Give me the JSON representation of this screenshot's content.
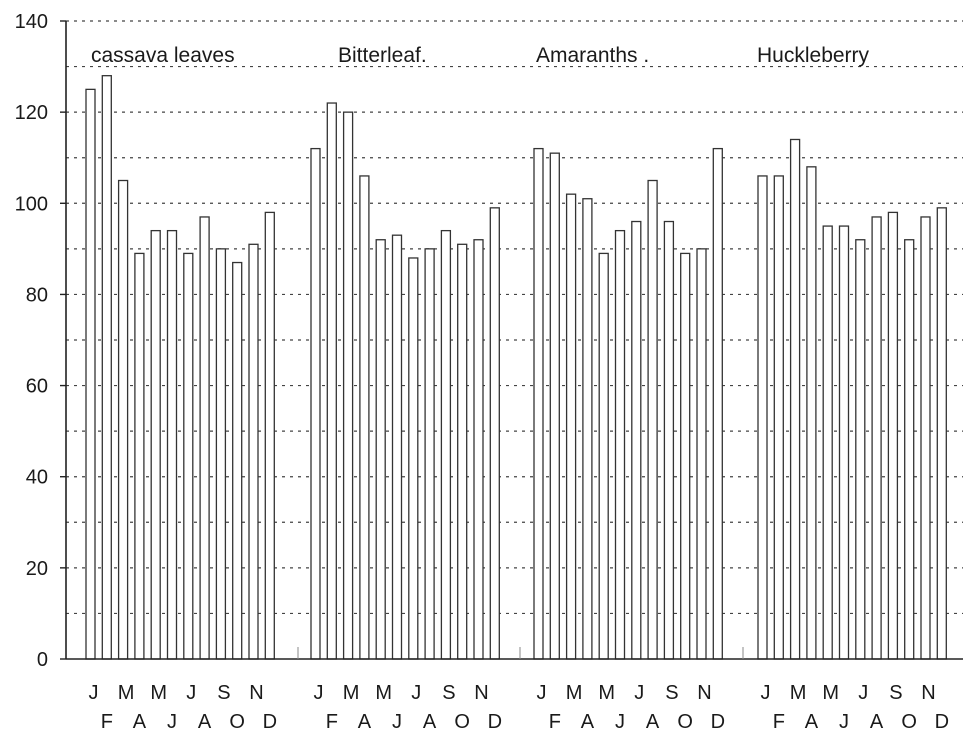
{
  "chart_data": {
    "type": "bar",
    "ylim": [
      0,
      140
    ],
    "yticks": [
      0,
      20,
      40,
      60,
      80,
      100,
      120,
      140
    ],
    "ygrid_step": 10,
    "grid": true,
    "month_labels": [
      "J",
      "F",
      "M",
      "A",
      "M",
      "J",
      "J",
      "A",
      "S",
      "O",
      "N",
      "D"
    ],
    "bar_fill": "#ffffff",
    "bar_stroke": "#333333",
    "grid_color": "#444444",
    "groups": [
      {
        "name": "cassava leaves",
        "values": [
          125,
          128,
          105,
          89,
          94,
          94,
          89,
          97,
          90,
          87,
          91,
          98
        ]
      },
      {
        "name": "Bitterleaf.",
        "values": [
          112,
          122,
          120,
          106,
          92,
          93,
          88,
          90,
          94,
          91,
          92,
          99
        ]
      },
      {
        "name": "Amaranths .",
        "values": [
          112,
          111,
          102,
          101,
          89,
          94,
          96,
          105,
          96,
          89,
          90,
          112
        ]
      },
      {
        "name": "Huckleberry",
        "values": [
          106,
          106,
          114,
          108,
          95,
          95,
          92,
          97,
          98,
          92,
          97,
          99
        ]
      }
    ]
  }
}
